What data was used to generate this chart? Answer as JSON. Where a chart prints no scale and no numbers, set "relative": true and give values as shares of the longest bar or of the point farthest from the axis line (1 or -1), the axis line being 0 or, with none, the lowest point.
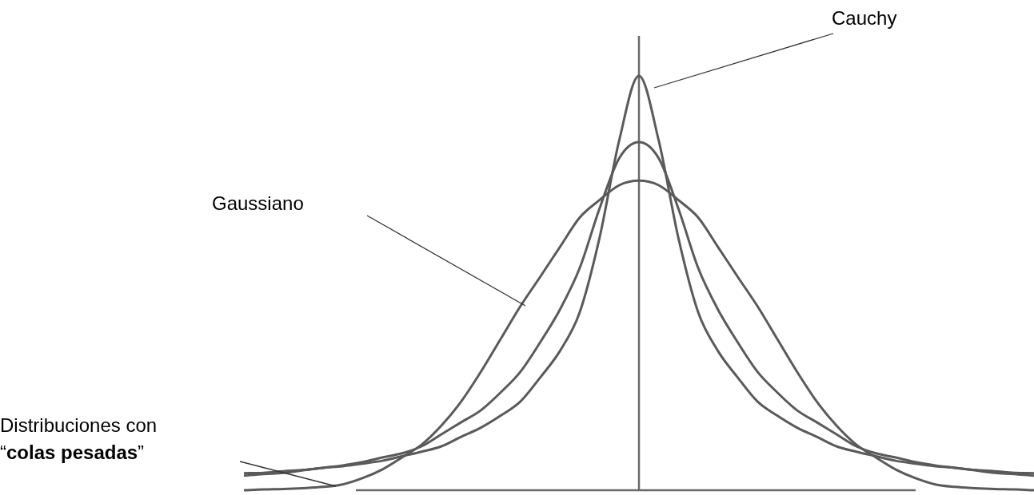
{
  "chart_data": {
    "type": "line",
    "relative": true,
    "legend": false,
    "marker": "none",
    "line_style": "solid",
    "categories": [
      null,
      null,
      null,
      null,
      null,
      null,
      null,
      null,
      null,
      null,
      null,
      null,
      null,
      null,
      null,
      null,
      null,
      null,
      null,
      null,
      null,
      null,
      null,
      null,
      null,
      null,
      null,
      null,
      null,
      null,
      null,
      null,
      null,
      null,
      null,
      null,
      null,
      null,
      null,
      null,
      null
    ],
    "series": [
      {
        "name": "Cauchy",
        "color": "#5a5a5a",
        "values": [
          0.041,
          0.042,
          0.046,
          0.049,
          0.054,
          0.058,
          0.064,
          0.071,
          0.082,
          0.093,
          0.106,
          0.129,
          0.151,
          0.18,
          0.214,
          0.272,
          0.336,
          0.429,
          0.608,
          0.844,
          1,
          0.844,
          0.608,
          0.429,
          0.336,
          0.272,
          0.214,
          0.18,
          0.151,
          0.129,
          0.106,
          0.093,
          0.082,
          0.071,
          0.064,
          0.058,
          0.054,
          0.049,
          0.046,
          0.042,
          0.041
        ]
      },
      {
        "color": "#5a5a5a",
        "values": [
          0.035,
          0.039,
          0.042,
          0.048,
          0.054,
          0.06,
          0.068,
          0.079,
          0.089,
          0.106,
          0.135,
          0.164,
          0.193,
          0.236,
          0.286,
          0.357,
          0.436,
          0.536,
          0.679,
          0.801,
          0.84,
          0.801,
          0.679,
          0.536,
          0.436,
          0.357,
          0.286,
          0.236,
          0.193,
          0.164,
          0.135,
          0.106,
          0.089,
          0.079,
          0.068,
          0.06,
          0.054,
          0.048,
          0.042,
          0.039,
          0.035
        ]
      },
      {
        "color": "#5a5a5a",
        "values": [
          0,
          0.002,
          0.003,
          0.005,
          0.008,
          0.014,
          0.029,
          0.05,
          0.079,
          0.11,
          0.156,
          0.214,
          0.286,
          0.365,
          0.444,
          0.515,
          0.587,
          0.658,
          0.7,
          0.736,
          0.747,
          0.736,
          0.7,
          0.658,
          0.587,
          0.515,
          0.444,
          0.365,
          0.286,
          0.214,
          0.156,
          0.11,
          0.079,
          0.05,
          0.029,
          0.014,
          0.008,
          0.005,
          0.003,
          0.002,
          0
        ]
      }
    ],
    "annotations": [
      "Gaussiano",
      "Distribuciones con “colas pesadas”"
    ]
  }
}
